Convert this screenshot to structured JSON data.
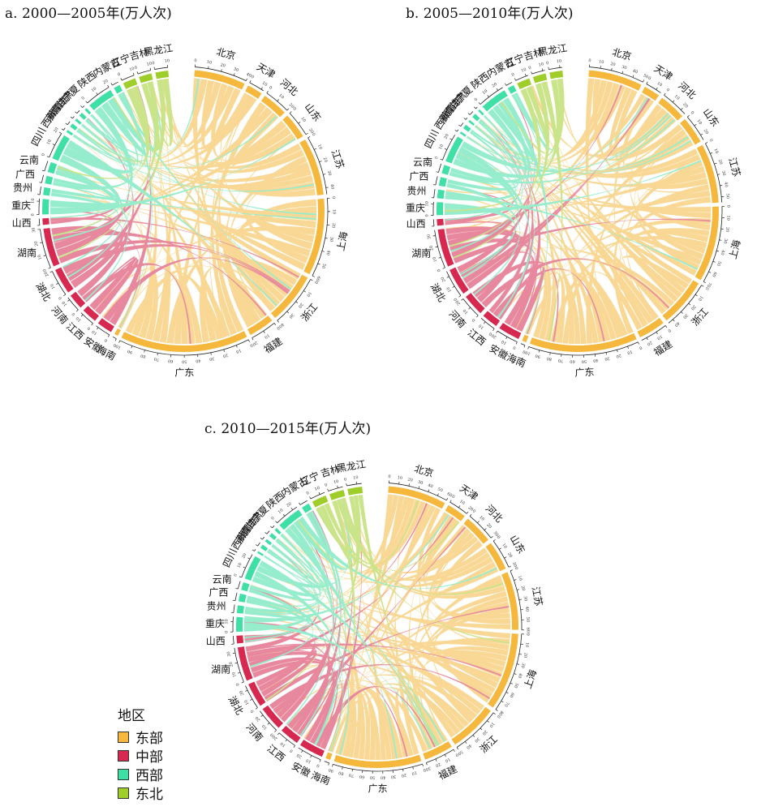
{
  "chart_data": [
    {
      "type": "chord",
      "title": "a. 2000—2005年(万人次)",
      "regions": [
        {
          "name": "北京",
          "group": "东部",
          "total": 40
        },
        {
          "name": "天津",
          "group": "东部",
          "total": 12
        },
        {
          "name": "河北",
          "group": "东部",
          "total": 20
        },
        {
          "name": "山东",
          "group": "东部",
          "total": 20
        },
        {
          "name": "江苏",
          "group": "东部",
          "total": 45
        },
        {
          "name": "上海",
          "group": "东部",
          "total": 60
        },
        {
          "name": "浙江",
          "group": "东部",
          "total": 40
        },
        {
          "name": "福建",
          "group": "东部",
          "total": 20
        },
        {
          "name": "广东",
          "group": "东部",
          "total": 100
        },
        {
          "name": "海南",
          "group": "东部",
          "total": 3
        },
        {
          "name": "安徽",
          "group": "中部",
          "total": 12
        },
        {
          "name": "江西",
          "group": "中部",
          "total": 12
        },
        {
          "name": "河南",
          "group": "中部",
          "total": 12
        },
        {
          "name": "湖北",
          "group": "中部",
          "total": 20
        },
        {
          "name": "湖南",
          "group": "中部",
          "total": 30
        },
        {
          "name": "山西",
          "group": "中部",
          "total": 5
        },
        {
          "name": "重庆",
          "group": "西部",
          "total": 12
        },
        {
          "name": "贵州",
          "group": "西部",
          "total": 6
        },
        {
          "name": "广西",
          "group": "西部",
          "total": 6
        },
        {
          "name": "云南",
          "group": "西部",
          "total": 8
        },
        {
          "name": "四川",
          "group": "西部",
          "total": 20
        },
        {
          "name": "西藏",
          "group": "西部",
          "total": 2
        },
        {
          "name": "新疆",
          "group": "西部",
          "total": 3
        },
        {
          "name": "青海",
          "group": "西部",
          "total": 2
        },
        {
          "name": "甘肃",
          "group": "西部",
          "total": 3
        },
        {
          "name": "宁夏",
          "group": "西部",
          "total": 2
        },
        {
          "name": "陕西",
          "group": "西部",
          "total": 20
        },
        {
          "name": "内蒙古",
          "group": "西部",
          "total": 5
        },
        {
          "name": "辽宁",
          "group": "东北",
          "total": 10
        },
        {
          "name": "吉林",
          "group": "东北",
          "total": 10
        },
        {
          "name": "黑龙江",
          "group": "东北",
          "total": 10
        }
      ]
    },
    {
      "type": "chord",
      "title": "b. 2005—2010年(万人次)",
      "regions": [
        {
          "name": "北京",
          "group": "东部",
          "total": 50
        },
        {
          "name": "天津",
          "group": "东部",
          "total": 15
        },
        {
          "name": "河北",
          "group": "东部",
          "total": 25
        },
        {
          "name": "山东",
          "group": "东部",
          "total": 25
        },
        {
          "name": "江苏",
          "group": "东部",
          "total": 55
        },
        {
          "name": "上海",
          "group": "东部",
          "total": 70
        },
        {
          "name": "浙江",
          "group": "东部",
          "total": 45
        },
        {
          "name": "福建",
          "group": "东部",
          "total": 25
        },
        {
          "name": "广东",
          "group": "东部",
          "total": 100
        },
        {
          "name": "海南",
          "group": "东部",
          "total": 4
        },
        {
          "name": "安徽",
          "group": "中部",
          "total": 20
        },
        {
          "name": "江西",
          "group": "中部",
          "total": 15
        },
        {
          "name": "河南",
          "group": "中部",
          "total": 20
        },
        {
          "name": "湖北",
          "group": "中部",
          "total": 25
        },
        {
          "name": "湖南",
          "group": "中部",
          "total": 35
        },
        {
          "name": "山西",
          "group": "中部",
          "total": 6
        },
        {
          "name": "重庆",
          "group": "西部",
          "total": 12
        },
        {
          "name": "贵州",
          "group": "西部",
          "total": 8
        },
        {
          "name": "广西",
          "group": "西部",
          "total": 8
        },
        {
          "name": "云南",
          "group": "西部",
          "total": 8
        },
        {
          "name": "四川",
          "group": "西部",
          "total": 25
        },
        {
          "name": "西藏",
          "group": "西部",
          "total": 2
        },
        {
          "name": "新疆",
          "group": "西部",
          "total": 4
        },
        {
          "name": "青海",
          "group": "西部",
          "total": 2
        },
        {
          "name": "甘肃",
          "group": "西部",
          "total": 4
        },
        {
          "name": "宁夏",
          "group": "西部",
          "total": 2
        },
        {
          "name": "陕西",
          "group": "西部",
          "total": 25
        },
        {
          "name": "内蒙古",
          "group": "西部",
          "total": 6
        },
        {
          "name": "辽宁",
          "group": "东北",
          "total": 12
        },
        {
          "name": "吉林",
          "group": "东北",
          "total": 12
        },
        {
          "name": "黑龙江",
          "group": "东北",
          "total": 12
        }
      ]
    },
    {
      "type": "chord",
      "title": "c. 2010—2015年(万人次)",
      "regions": [
        {
          "name": "北京",
          "group": "东部",
          "total": 60
        },
        {
          "name": "天津",
          "group": "东部",
          "total": 20
        },
        {
          "name": "河北",
          "group": "东部",
          "total": 30
        },
        {
          "name": "山东",
          "group": "东部",
          "total": 30
        },
        {
          "name": "江苏",
          "group": "东部",
          "total": 60
        },
        {
          "name": "上海",
          "group": "东部",
          "total": 80
        },
        {
          "name": "浙江",
          "group": "东部",
          "total": 50
        },
        {
          "name": "福建",
          "group": "东部",
          "total": 30
        },
        {
          "name": "广东",
          "group": "东部",
          "total": 90
        },
        {
          "name": "海南",
          "group": "东部",
          "total": 5
        },
        {
          "name": "安徽",
          "group": "中部",
          "total": 25
        },
        {
          "name": "江西",
          "group": "中部",
          "total": 20
        },
        {
          "name": "河南",
          "group": "中部",
          "total": 25
        },
        {
          "name": "湖北",
          "group": "中部",
          "total": 25
        },
        {
          "name": "湖南",
          "group": "中部",
          "total": 35
        },
        {
          "name": "山西",
          "group": "中部",
          "total": 8
        },
        {
          "name": "重庆",
          "group": "西部",
          "total": 15
        },
        {
          "name": "贵州",
          "group": "西部",
          "total": 8
        },
        {
          "name": "广西",
          "group": "西部",
          "total": 8
        },
        {
          "name": "云南",
          "group": "西部",
          "total": 8
        },
        {
          "name": "四川",
          "group": "西部",
          "total": 25
        },
        {
          "name": "西藏",
          "group": "西部",
          "total": 2
        },
        {
          "name": "新疆",
          "group": "西部",
          "total": 4
        },
        {
          "name": "青海",
          "group": "西部",
          "total": 3
        },
        {
          "name": "甘肃",
          "group": "西部",
          "total": 4
        },
        {
          "name": "宁夏",
          "group": "西部",
          "total": 3
        },
        {
          "name": "陕西",
          "group": "西部",
          "total": 25
        },
        {
          "name": "内蒙古",
          "group": "西部",
          "total": 8
        },
        {
          "name": "辽宁",
          "group": "东北",
          "total": 15
        },
        {
          "name": "吉林",
          "group": "东北",
          "total": 15
        },
        {
          "name": "黑龙江",
          "group": "东北",
          "total": 15
        }
      ]
    }
  ],
  "legend": {
    "title": "地区",
    "items": [
      {
        "label": "东部",
        "color": "#f5b83d"
      },
      {
        "label": "中部",
        "color": "#d7284f"
      },
      {
        "label": "西部",
        "color": "#3fe0a5"
      },
      {
        "label": "东北",
        "color": "#9fce2b"
      }
    ]
  }
}
